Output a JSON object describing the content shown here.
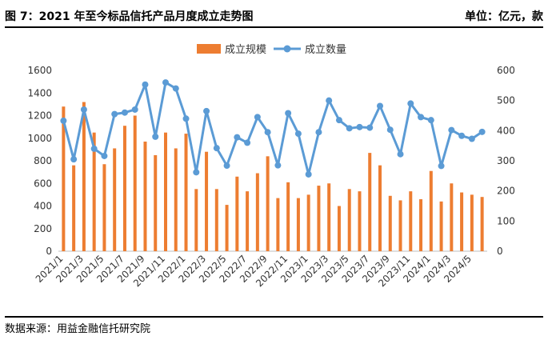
{
  "header": {
    "title": "图 7：2021 年至今标品信托产品月度成立走势图",
    "unit": "单位：亿元，款"
  },
  "footer": {
    "source": "数据来源：用益金融信托研究院"
  },
  "colors": {
    "bar": "#ED7D31",
    "line": "#5B9BD5",
    "axis": "#BFBFBF"
  },
  "chart_data": {
    "type": "bar+line",
    "x": [
      "2021/1",
      "2021/2",
      "2021/3",
      "2021/4",
      "2021/5",
      "2021/6",
      "2021/7",
      "2021/8",
      "2021/9",
      "2021/10",
      "2021/11",
      "2021/12",
      "2022/1",
      "2022/2",
      "2022/3",
      "2022/4",
      "2022/5",
      "2022/6",
      "2022/7",
      "2022/8",
      "2022/9",
      "2022/10",
      "2022/11",
      "2022/12",
      "2023/1",
      "2023/2",
      "2023/3",
      "2023/4",
      "2023/5",
      "2023/6",
      "2023/7",
      "2023/8",
      "2023/9",
      "2023/10",
      "2023/11",
      "2023/12",
      "2024/1",
      "2024/2",
      "2024/3",
      "2024/4",
      "2024/5",
      "2024/6"
    ],
    "x_tick_labels": [
      "2021/1",
      "2021/3",
      "2021/5",
      "2021/7",
      "2021/9",
      "2021/11",
      "2022/1",
      "2022/3",
      "2022/5",
      "2022/7",
      "2022/9",
      "2022/11",
      "2023/1",
      "2023/3",
      "2023/5",
      "2023/7",
      "2023/9",
      "2023/11",
      "2024/1",
      "2024/3",
      "2024/5"
    ],
    "series": [
      {
        "name": "成立规模",
        "type": "bar",
        "axis": "left",
        "values": [
          1280,
          760,
          1320,
          1050,
          770,
          910,
          1110,
          1200,
          970,
          850,
          1050,
          910,
          1040,
          550,
          880,
          550,
          410,
          660,
          530,
          690,
          840,
          470,
          610,
          470,
          500,
          580,
          600,
          400,
          550,
          530,
          870,
          760,
          490,
          450,
          530,
          460,
          710,
          440,
          600,
          520,
          500,
          480
        ]
      },
      {
        "name": "成立数量",
        "type": "line",
        "axis": "right",
        "values": [
          433,
          305,
          470,
          340,
          316,
          455,
          460,
          470,
          553,
          380,
          560,
          540,
          440,
          262,
          465,
          342,
          284,
          378,
          360,
          445,
          395,
          285,
          458,
          390,
          255,
          395,
          500,
          435,
          408,
          412,
          410,
          482,
          403,
          322,
          490,
          445,
          435,
          283,
          402,
          383,
          373,
          396
        ]
      }
    ],
    "y_left": {
      "min": 0,
      "max": 1600,
      "ticks": [
        0,
        200,
        400,
        600,
        800,
        1000,
        1200,
        1400,
        1600
      ]
    },
    "y_right": {
      "min": 0,
      "max": 600,
      "ticks": [
        0,
        100,
        200,
        300,
        400,
        500,
        600
      ]
    },
    "legend": {
      "position": "top-center",
      "items": [
        "成立规模",
        "成立数量"
      ]
    },
    "grid": false
  }
}
